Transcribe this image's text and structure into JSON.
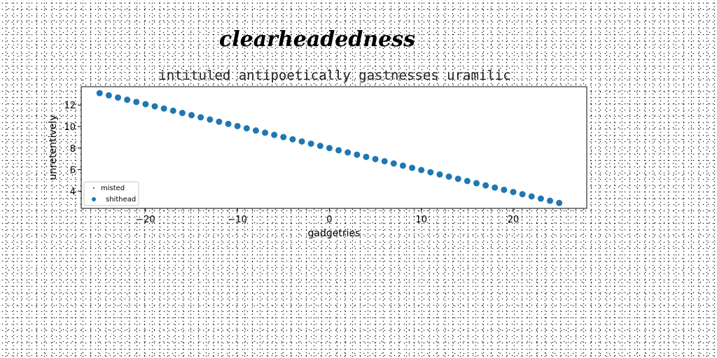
{
  "chart_data": {
    "type": "scatter",
    "title": "clearheadedness",
    "subtitle": "intituled antipoetically gastnesses uramilic",
    "xlabel": "gadgetries",
    "ylabel": "unretentively",
    "xlim": [
      -27,
      28
    ],
    "ylim": [
      2.4,
      13.7
    ],
    "xticks": [
      -20,
      -10,
      0,
      10,
      20
    ],
    "xtick_labels": [
      "−20",
      "−10",
      "0",
      "10",
      "20"
    ],
    "yticks": [
      4,
      6,
      8,
      10,
      12
    ],
    "ytick_labels": [
      "4",
      "6",
      "8",
      "10",
      "12"
    ],
    "grid": false,
    "legend": {
      "position": "lower-left",
      "entries": [
        {
          "label": "misted",
          "marker": "small-dot"
        },
        {
          "label": "shithead",
          "marker": "circle"
        }
      ]
    },
    "series": [
      {
        "name": "shithead",
        "color": "#1f77b4",
        "x_start": -25,
        "x_end": 25,
        "n_points": 51,
        "y_start": 13.1,
        "y_end": 2.9
      }
    ]
  }
}
